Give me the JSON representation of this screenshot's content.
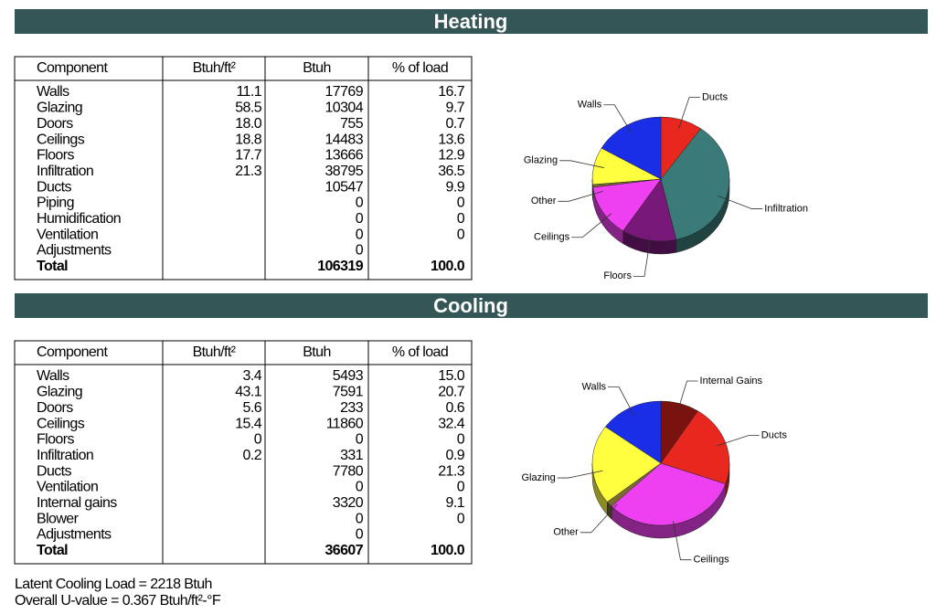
{
  "heating": {
    "title": "Heating",
    "table": {
      "header": [
        "Component",
        "Btuh/ft²",
        "Btuh",
        "% of load"
      ],
      "rows": [
        [
          "Walls",
          "11.1",
          "17769",
          "16.7"
        ],
        [
          "Glazing",
          "58.5",
          "10304",
          "9.7"
        ],
        [
          "Doors",
          "18.0",
          "755",
          "0.7"
        ],
        [
          "Ceilings",
          "18.8",
          "14483",
          "13.6"
        ],
        [
          "Floors",
          "17.7",
          "13666",
          "12.9"
        ],
        [
          "Infiltration",
          "21.3",
          "38795",
          "36.5"
        ],
        [
          "Ducts",
          null,
          "10547",
          "9.9"
        ],
        [
          "Piping",
          null,
          "0",
          "0"
        ],
        [
          "Humidification",
          null,
          "0",
          "0"
        ],
        [
          "Ventilation",
          null,
          "0",
          "0"
        ],
        [
          "Adjustments",
          null,
          "0",
          null
        ]
      ],
      "total": [
        "Total",
        null,
        "106319",
        "100.0"
      ]
    },
    "pie": {
      "labels": [
        "Ducts",
        "Infiltration",
        "Floors",
        "Ceilings",
        "Other",
        "Glazing",
        "Walls"
      ],
      "values": [
        9.9,
        36.5,
        12.9,
        13.6,
        0.7,
        9.7,
        16.7
      ],
      "colors": [
        "#e8281e",
        "#3a7a78",
        "#781878",
        "#ee40f0",
        "#7a6a30",
        "#ffff40",
        "#1a2ee8"
      ]
    }
  },
  "cooling": {
    "title": "Cooling",
    "table": {
      "header": [
        "Component",
        "Btuh/ft²",
        "Btuh",
        "% of load"
      ],
      "rows": [
        [
          "Walls",
          "3.4",
          "5493",
          "15.0"
        ],
        [
          "Glazing",
          "43.1",
          "7591",
          "20.7"
        ],
        [
          "Doors",
          "5.6",
          "233",
          "0.6"
        ],
        [
          "Ceilings",
          "15.4",
          "11860",
          "32.4"
        ],
        [
          "Floors",
          "0",
          "0",
          "0"
        ],
        [
          "Infiltration",
          "0.2",
          "331",
          "0.9"
        ],
        [
          "Ducts",
          null,
          "7780",
          "21.3"
        ],
        [
          "Ventilation",
          null,
          "0",
          "0"
        ],
        [
          "Internal gains",
          null,
          "3320",
          "9.1"
        ],
        [
          "Blower",
          null,
          "0",
          "0"
        ],
        [
          "Adjustments",
          null,
          "0",
          null
        ]
      ],
      "total": [
        "Total",
        null,
        "36607",
        "100.0"
      ]
    },
    "pie": {
      "labels": [
        "Internal Gains",
        "Ducts",
        "Ceilings",
        "Other",
        "Glazing",
        "Walls"
      ],
      "values": [
        9.1,
        21.3,
        32.4,
        1.5,
        20.7,
        15.0
      ],
      "colors": [
        "#7a1210",
        "#e8281e",
        "#ee40f0",
        "#7a6a30",
        "#ffff40",
        "#1a2ee8"
      ]
    }
  },
  "footer": [
    "Latent Cooling Load = 2218 Btuh",
    "Overall U-value = 0.367 Btuh/ft²-°F"
  ]
}
